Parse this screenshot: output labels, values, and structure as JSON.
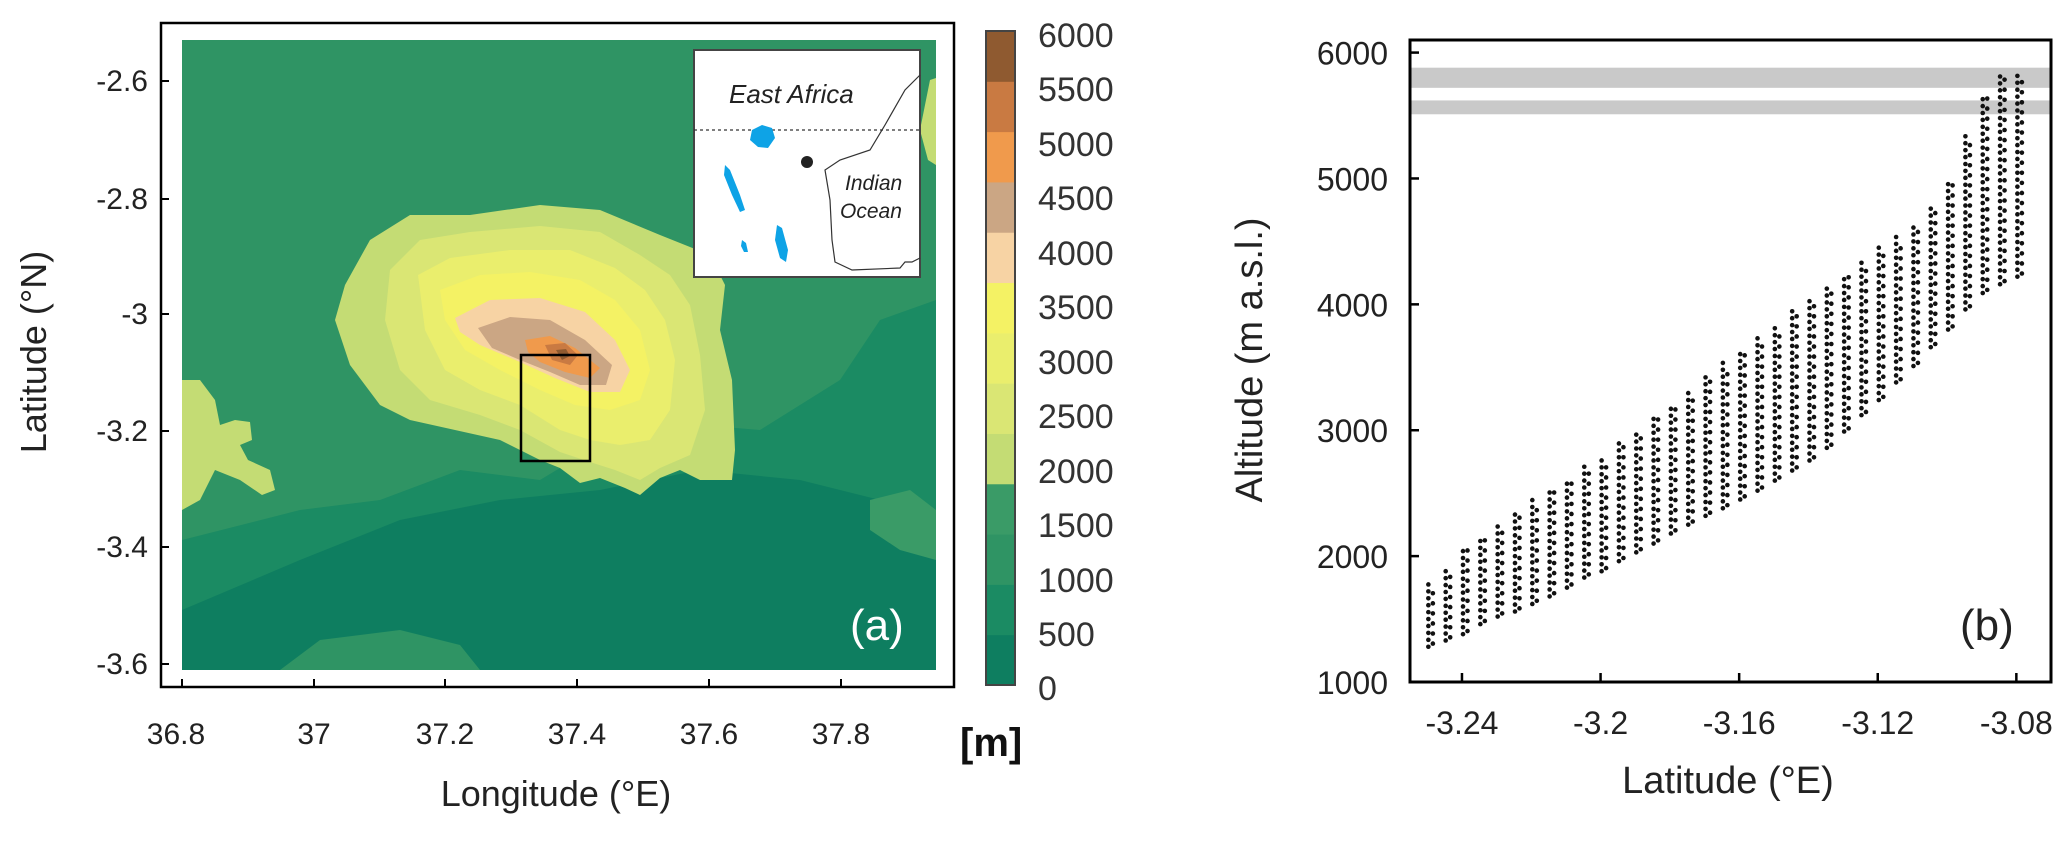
{
  "panel_a": {
    "label": "(a)",
    "xlabel": "Longitude (°E)",
    "ylabel": "Latitude (°N)",
    "x_ticks": [
      "36.8",
      "37",
      "37.2",
      "37.4",
      "37.6",
      "37.8"
    ],
    "y_ticks": [
      "-2.6",
      "-2.8",
      "-3",
      "-3.2",
      "-3.4",
      "-3.6"
    ],
    "colorbar_ticks": [
      "6000",
      "5500",
      "5000",
      "4500",
      "4000",
      "3500",
      "3000",
      "2500",
      "2000",
      "1500",
      "1000",
      "500",
      "0"
    ],
    "colorbar_unit": "[m]",
    "inset": {
      "region_label": "East Africa",
      "ocean_label_1": "Indian",
      "ocean_label_2": "Ocean"
    }
  },
  "chart_data": [
    {
      "type": "heatmap",
      "xlabel": "Longitude (°E)",
      "ylabel": "Latitude (°N)",
      "xlim": [
        36.8,
        37.92
      ],
      "ylim": [
        -3.62,
        -2.52
      ],
      "colorbar": {
        "unit": "[m]",
        "levels": [
          0,
          500,
          1000,
          1500,
          2000,
          2500,
          3000,
          3500,
          4000,
          4500,
          5000,
          5500,
          6000
        ],
        "colors": [
          "#0e7e60",
          "#1b8b63",
          "#2f9464",
          "#3a9b67",
          "#c4dc74",
          "#dae674",
          "#eaee6d",
          "#f4f264",
          "#f7d3a4",
          "#cba684",
          "#f09a4c",
          "#c97a42",
          "#8f5a30"
        ]
      },
      "study_box": {
        "lon_min": 37.3,
        "lon_max": 37.4,
        "lat_min": -3.25,
        "lat_max": -3.07
      }
    },
    {
      "type": "scatter",
      "label": "(b)",
      "xlabel": "Latitude (°E)",
      "ylabel": "Altitude (m a.s.l.)",
      "xlim": [
        -3.255,
        -3.07
      ],
      "ylim": [
        1000,
        6100
      ],
      "x_ticks": [
        -3.24,
        -3.2,
        -3.16,
        -3.12,
        -3.08
      ],
      "x_tick_labels": [
        "-3.24",
        "-3.2",
        "-3.16",
        "-3.12",
        "-3.08"
      ],
      "y_ticks": [
        1000,
        2000,
        3000,
        4000,
        5000,
        6000
      ],
      "y_tick_labels": [
        "1000",
        "2000",
        "3000",
        "4000",
        "5000",
        "6000"
      ],
      "shaded_bands": [
        [
          5720,
          5880
        ],
        [
          5510,
          5620
        ]
      ],
      "columns": [
        {
          "lat": -3.2497,
          "min": 1280,
          "max": 1760,
          "max_l": 1780
        },
        {
          "lat": -3.2447,
          "min": 1330,
          "max": 1900,
          "max_l": 1930
        },
        {
          "lat": -3.2397,
          "min": 1380,
          "max": 2050,
          "max_l": 2080
        },
        {
          "lat": -3.2347,
          "min": 1460,
          "max": 2140,
          "max_l": 2170
        },
        {
          "lat": -3.2297,
          "min": 1520,
          "max": 2220,
          "max_l": 2250
        },
        {
          "lat": -3.2247,
          "min": 1560,
          "max": 2320,
          "max_l": 2350
        },
        {
          "lat": -3.2197,
          "min": 1620,
          "max": 2430,
          "max_l": 2460
        },
        {
          "lat": -3.2147,
          "min": 1680,
          "max": 2520,
          "max_l": 2550
        },
        {
          "lat": -3.2097,
          "min": 1750,
          "max": 2590,
          "max_l": 2620
        },
        {
          "lat": -3.2047,
          "min": 1830,
          "max": 2680,
          "max_l": 2710
        },
        {
          "lat": -3.1997,
          "min": 1880,
          "max": 2780,
          "max_l": 2810
        },
        {
          "lat": -3.1947,
          "min": 1960,
          "max": 2880,
          "max_l": 2910
        },
        {
          "lat": -3.1897,
          "min": 2030,
          "max": 2970,
          "max_l": 3000
        },
        {
          "lat": -3.1847,
          "min": 2100,
          "max": 3100,
          "max_l": 3130
        },
        {
          "lat": -3.1797,
          "min": 2180,
          "max": 3180,
          "max_l": 3210
        },
        {
          "lat": -3.1747,
          "min": 2250,
          "max": 3300,
          "max_l": 3330
        },
        {
          "lat": -3.1697,
          "min": 2320,
          "max": 3420,
          "max_l": 3450
        },
        {
          "lat": -3.1647,
          "min": 2380,
          "max": 3520,
          "max_l": 3550
        },
        {
          "lat": -3.1597,
          "min": 2450,
          "max": 3620,
          "max_l": 3650
        },
        {
          "lat": -3.1547,
          "min": 2520,
          "max": 3720,
          "max_l": 3750
        },
        {
          "lat": -3.1497,
          "min": 2600,
          "max": 3820,
          "max_l": 3850
        },
        {
          "lat": -3.1447,
          "min": 2680,
          "max": 3920,
          "max_l": 3950
        },
        {
          "lat": -3.1397,
          "min": 2760,
          "max": 4010,
          "max_l": 4040
        },
        {
          "lat": -3.1347,
          "min": 2860,
          "max": 4120,
          "max_l": 4150
        },
        {
          "lat": -3.1297,
          "min": 2990,
          "max": 4220,
          "max_l": 4250
        },
        {
          "lat": -3.1247,
          "min": 3120,
          "max": 4320,
          "max_l": 4350
        },
        {
          "lat": -3.1197,
          "min": 3240,
          "max": 4420,
          "max_l": 4450
        },
        {
          "lat": -3.1147,
          "min": 3380,
          "max": 4520,
          "max_l": 4550
        },
        {
          "lat": -3.1097,
          "min": 3510,
          "max": 4620,
          "max_l": 4650
        },
        {
          "lat": -3.1047,
          "min": 3660,
          "max": 4770,
          "max_l": 4800
        },
        {
          "lat": -3.0997,
          "min": 3800,
          "max": 4950,
          "max_l": 4980
        },
        {
          "lat": -3.0947,
          "min": 3960,
          "max": 5330,
          "max_l": 5360
        },
        {
          "lat": -3.0897,
          "min": 4090,
          "max": 5650,
          "max_l": 5680
        },
        {
          "lat": -3.0847,
          "min": 4160,
          "max": 5820,
          "max_l": 5850
        },
        {
          "lat": -3.0797,
          "min": 4220,
          "max": 5830,
          "max_l": 5860
        }
      ]
    }
  ]
}
